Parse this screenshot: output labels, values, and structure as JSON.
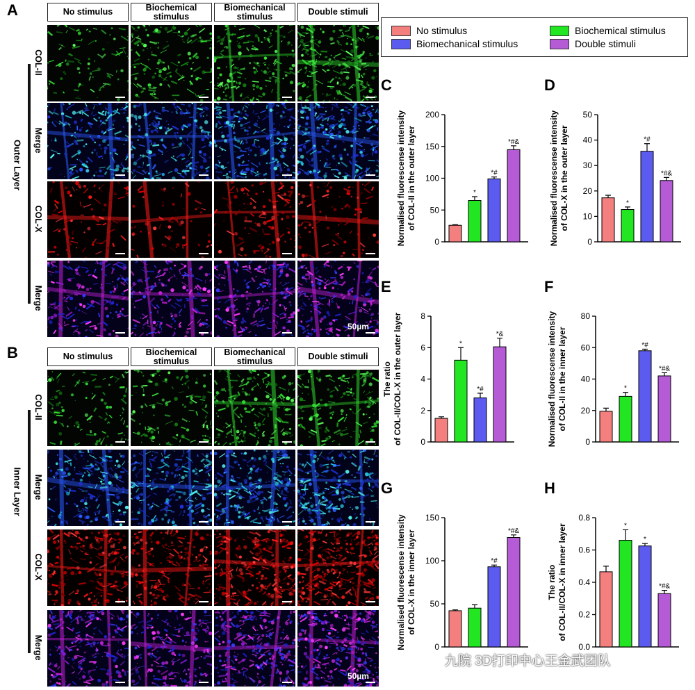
{
  "panel_a": {
    "letter": "A",
    "layer_label": "Outer Layer",
    "headers": [
      "No stimulus",
      "Biochemical stimulus",
      "Biomechanical stimulus",
      "Double stimuli"
    ],
    "rows": [
      {
        "label": "COL-II",
        "stain": "green"
      },
      {
        "label": "Merge",
        "stain": "cyan-blue"
      },
      {
        "label": "COL-X",
        "stain": "red"
      },
      {
        "label": "Merge",
        "stain": "magenta-blue"
      }
    ],
    "scale_label": "50µm"
  },
  "panel_b": {
    "letter": "B",
    "layer_label": "Inner Layer",
    "headers": [
      "No stimulus",
      "Biochemical stimulus",
      "Biomechanical stimulus",
      "Double stimuli"
    ],
    "rows": [
      {
        "label": "COL-II",
        "stain": "green"
      },
      {
        "label": "Merge",
        "stain": "cyan-blue"
      },
      {
        "label": "COL-X",
        "stain": "red"
      },
      {
        "label": "Merge",
        "stain": "magenta-blue"
      }
    ],
    "scale_label": "50µm"
  },
  "legend": {
    "items": [
      {
        "label": "No stimulus",
        "color": "#f47f7f"
      },
      {
        "label": "Biochemical stimulus",
        "color": "#22e622"
      },
      {
        "label": "Biomechanical stimulus",
        "color": "#5b5bef"
      },
      {
        "label": "Double stimuli",
        "color": "#b55bd6"
      }
    ]
  },
  "chart_data": [
    {
      "panel": "C",
      "type": "bar",
      "ylabel": "Normalised fluorescense intensity of COL-II in the outer layer",
      "ylim": [
        0,
        200
      ],
      "yticks": [
        0,
        50,
        100,
        150,
        200
      ],
      "categories": [
        "No stimulus",
        "Biochemical stimulus",
        "Biomechanical stimulus",
        "Double stimuli"
      ],
      "values": [
        26,
        65,
        99,
        145
      ],
      "errors": [
        1,
        6,
        3,
        6
      ],
      "annotations": [
        "",
        "*",
        "*#",
        "*#&"
      ]
    },
    {
      "panel": "D",
      "type": "bar",
      "ylabel": "Normalised fluorescense intensity of COL-X in the outer layer",
      "ylim": [
        0,
        50
      ],
      "yticks": [
        0,
        10,
        20,
        30,
        40,
        50
      ],
      "categories": [
        "No stimulus",
        "Biochemical stimulus",
        "Biomechanical stimulus",
        "Double stimuli"
      ],
      "values": [
        17.3,
        12.7,
        35.6,
        24.1
      ],
      "errors": [
        1.0,
        1.0,
        3.0,
        1.2
      ],
      "annotations": [
        "",
        "*",
        "*#",
        "*#&"
      ]
    },
    {
      "panel": "E",
      "type": "bar",
      "ylabel": "The ratio of COL-II/COL-X in the outer layer",
      "ylim": [
        0,
        8
      ],
      "yticks": [
        0,
        2,
        4,
        6,
        8
      ],
      "categories": [
        "No stimulus",
        "Biochemical stimulus",
        "Biomechanical stimulus",
        "Double stimuli"
      ],
      "values": [
        1.5,
        5.2,
        2.8,
        6.05
      ],
      "errors": [
        0.1,
        0.8,
        0.3,
        0.55
      ],
      "annotations": [
        "",
        "*",
        "*#",
        "*&"
      ]
    },
    {
      "panel": "F",
      "type": "bar",
      "ylabel": "Normalised fluorescense intensity of COL-II in the inner layer",
      "ylim": [
        0,
        80
      ],
      "yticks": [
        0,
        20,
        40,
        60,
        80
      ],
      "categories": [
        "No stimulus",
        "Biochemical stimulus",
        "Biomechanical stimulus",
        "Double stimuli"
      ],
      "values": [
        19.5,
        29,
        58,
        42
      ],
      "errors": [
        2,
        2.5,
        1,
        2
      ],
      "annotations": [
        "",
        "*",
        "*#",
        "*#&"
      ]
    },
    {
      "panel": "G",
      "type": "bar",
      "ylabel": "Normalised fluorescense intensity of COL-X in the inner layer",
      "ylim": [
        0,
        150
      ],
      "yticks": [
        0,
        50,
        100,
        150
      ],
      "categories": [
        "No stimulus",
        "Biochemical stimulus",
        "Biomechanical stimulus",
        "Double stimuli"
      ],
      "values": [
        42,
        45,
        93,
        127
      ],
      "errors": [
        1,
        4,
        2,
        3
      ],
      "annotations": [
        "",
        "",
        "*#",
        "*#&"
      ]
    },
    {
      "panel": "H",
      "type": "bar",
      "ylabel": "The ratio of COL-II/COL-X in inner layer",
      "ylim": [
        0,
        0.8
      ],
      "yticks": [
        0.0,
        0.2,
        0.4,
        0.6,
        0.8
      ],
      "categories": [
        "No stimulus",
        "Biochemical stimulus",
        "Biomechanical stimulus",
        "Double stimuli"
      ],
      "values": [
        0.465,
        0.66,
        0.625,
        0.33
      ],
      "errors": [
        0.035,
        0.065,
        0.015,
        0.02
      ],
      "annotations": [
        "",
        "*",
        "*",
        "*#&"
      ]
    }
  ],
  "watermark": "九院 3D打印中心王金武团队"
}
